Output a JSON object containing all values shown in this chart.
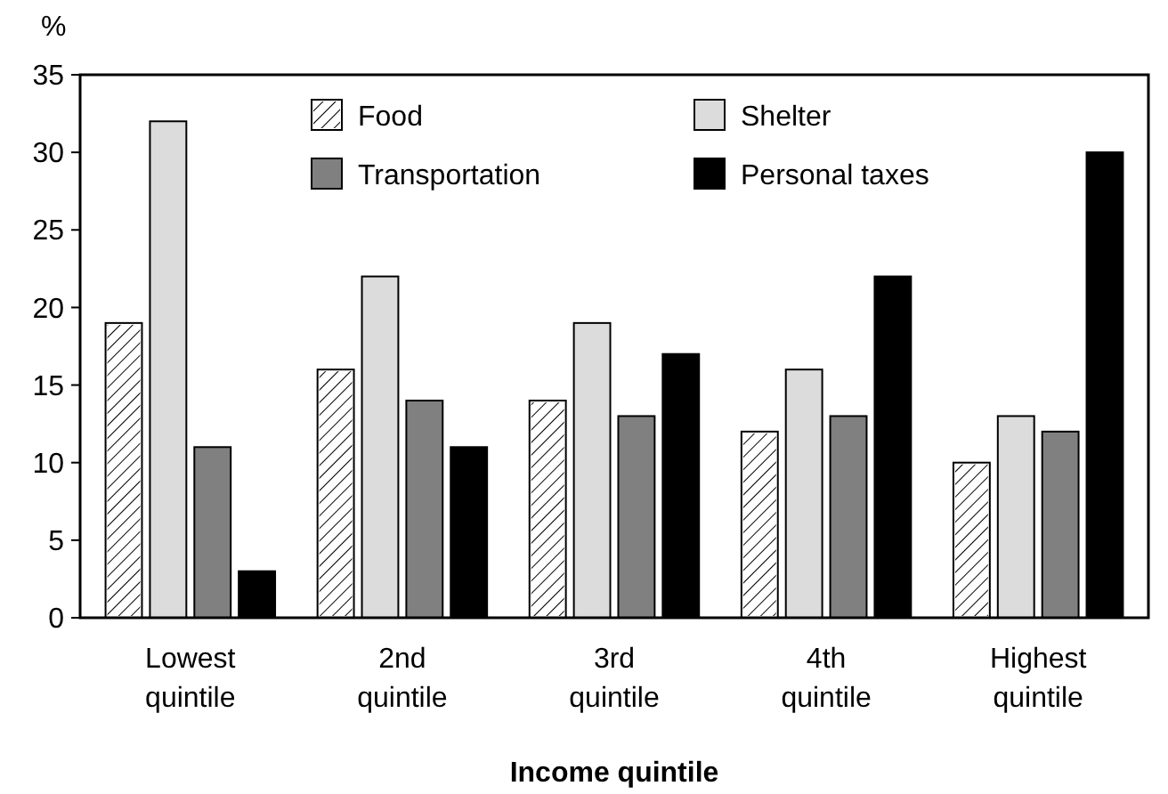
{
  "chart_data": {
    "type": "bar",
    "xlabel": "Income quintile",
    "ylabel": "%",
    "categories": [
      "Lowest quintile",
      "2nd quintile",
      "3rd quintile",
      "4th quintile",
      "Highest quintile"
    ],
    "series": [
      {
        "name": "Food",
        "color": "#ffffff",
        "values": [
          19,
          16,
          14,
          12,
          10
        ]
      },
      {
        "name": "Shelter",
        "color": "#dcdcdc",
        "values": [
          32,
          22,
          19,
          16,
          13
        ]
      },
      {
        "name": "Transportation",
        "color": "#808080",
        "values": [
          11,
          14,
          13,
          13,
          12
        ]
      },
      {
        "name": "Personal taxes",
        "color": "#000000",
        "values": [
          3,
          11,
          17,
          22,
          30
        ]
      }
    ],
    "ylim": [
      0,
      35
    ],
    "yticks": [
      0,
      5,
      10,
      15,
      20,
      25,
      30,
      35
    ],
    "grid": false,
    "legend": "top"
  }
}
